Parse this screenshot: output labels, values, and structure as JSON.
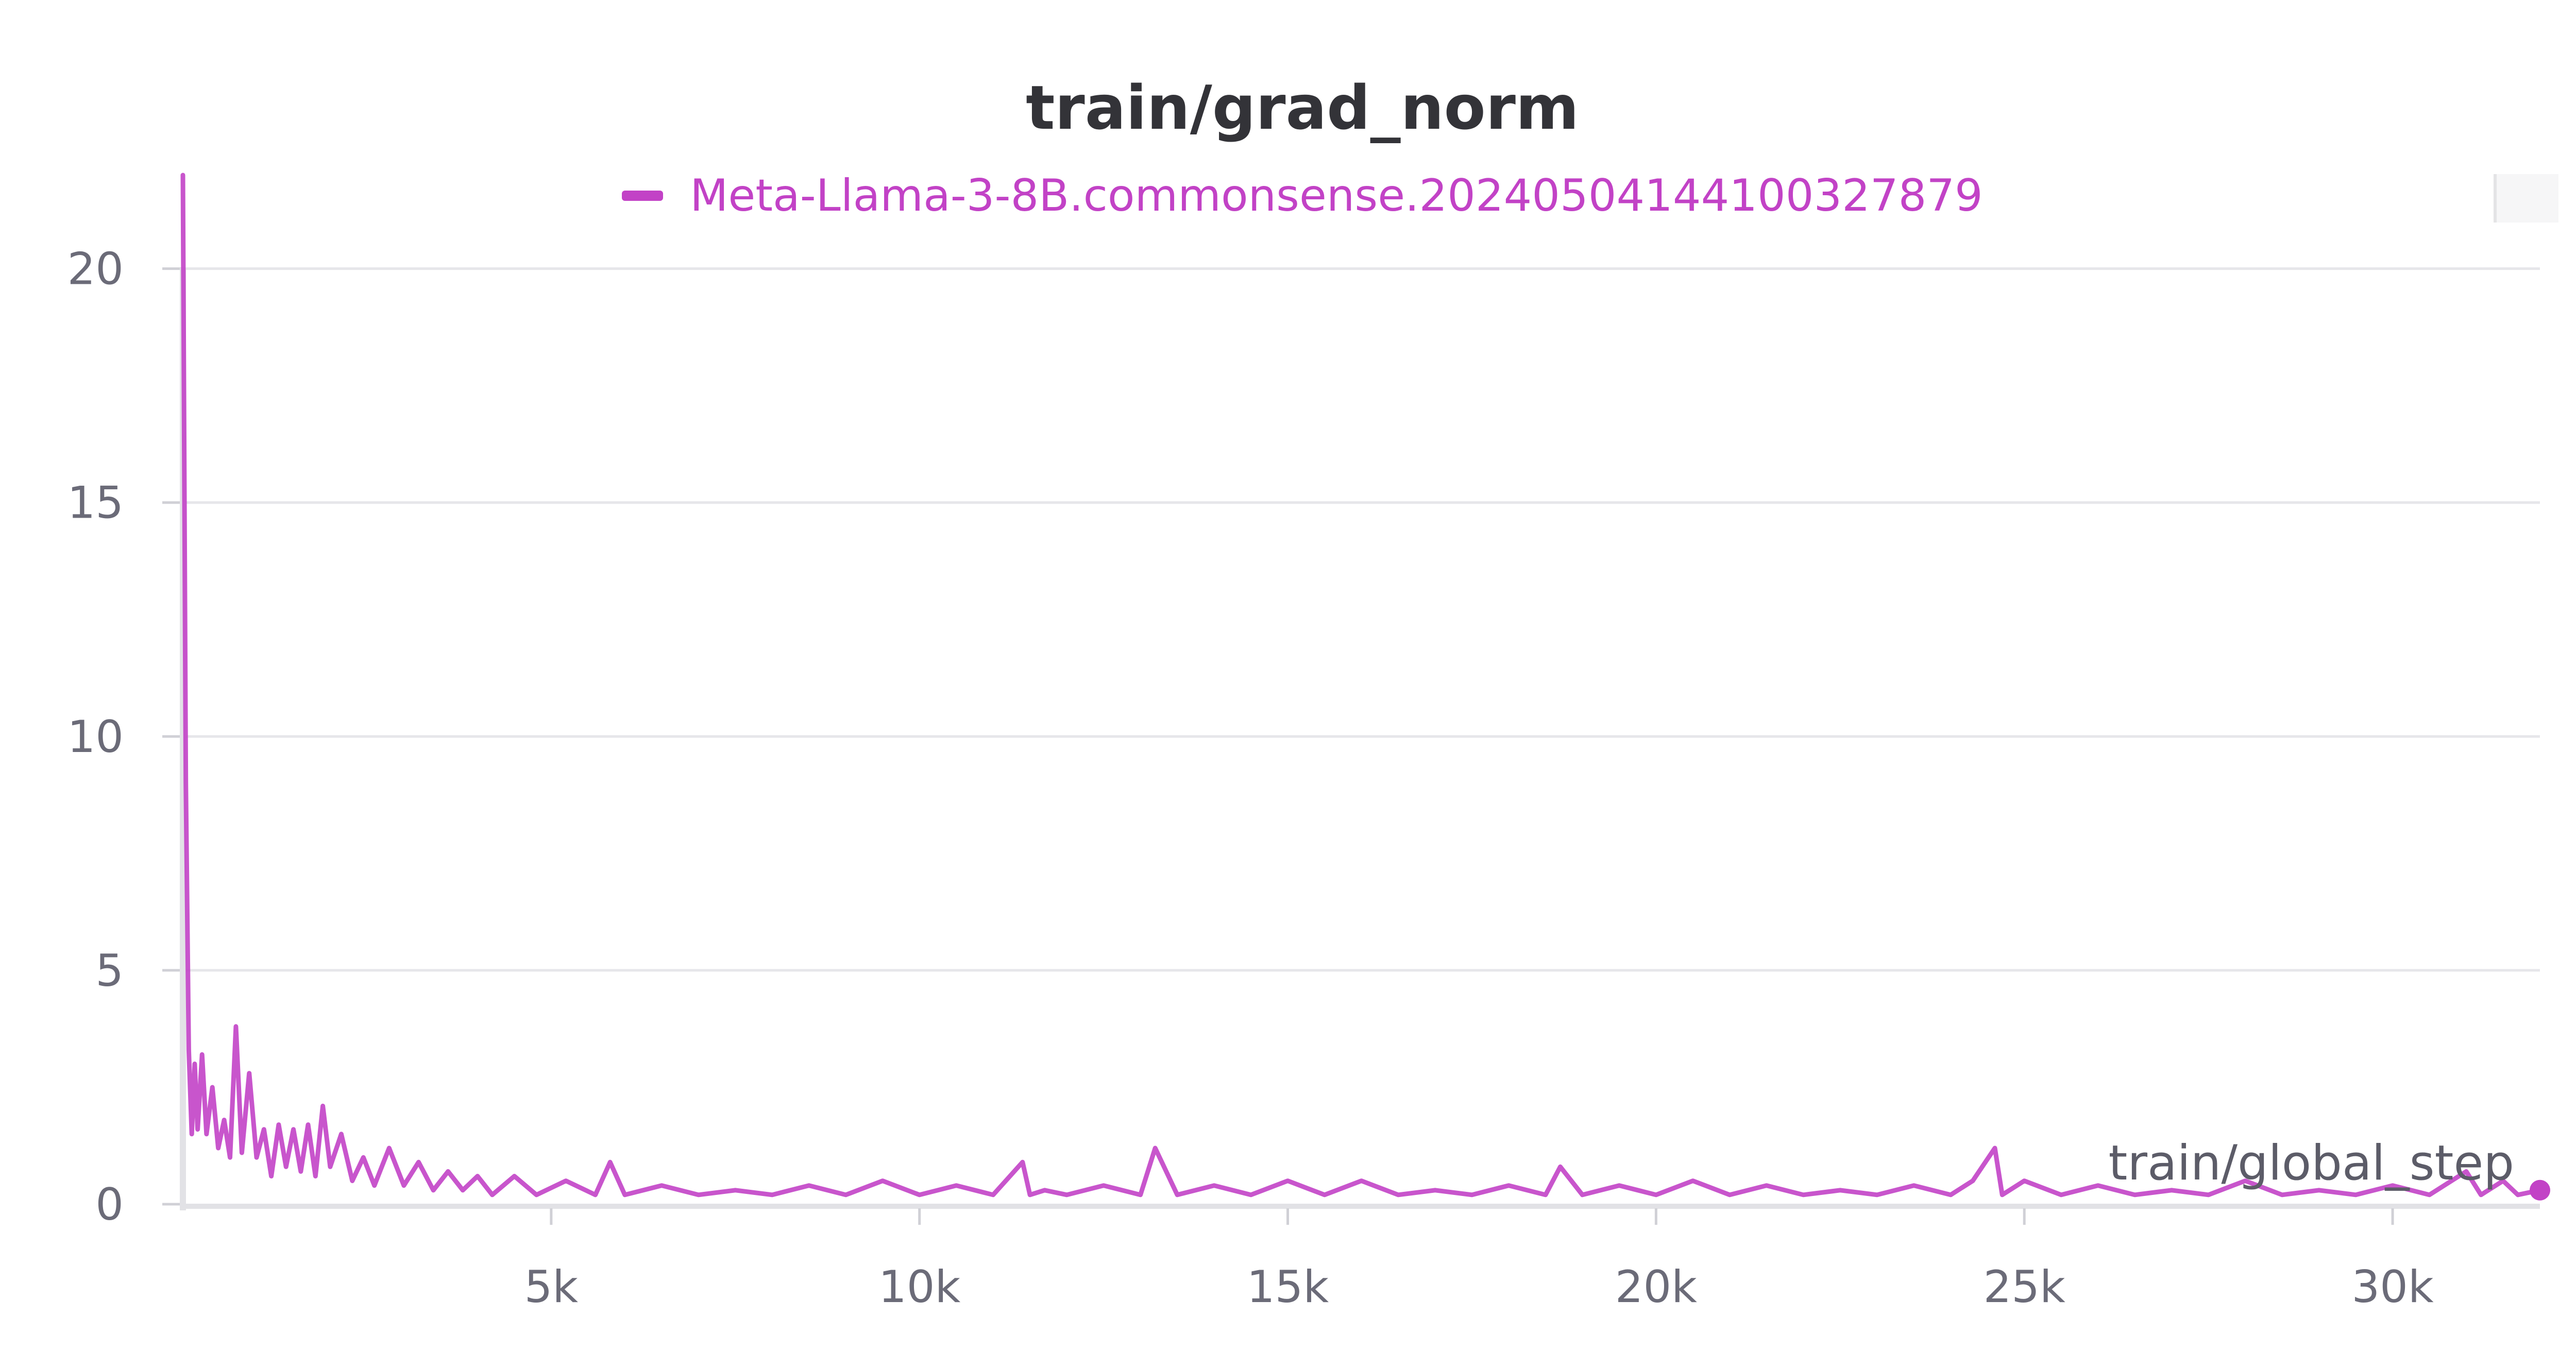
{
  "chart_data": {
    "type": "line",
    "title": "train/grad_norm",
    "xlabel": "train/global_step",
    "ylabel": "",
    "legend_position": "top-center",
    "grid": true,
    "xlim": [
      0,
      32000
    ],
    "ylim": [
      0,
      22
    ],
    "x_ticks": [
      5000,
      10000,
      15000,
      20000,
      25000,
      30000
    ],
    "x_tick_labels": [
      "5k",
      "10k",
      "15k",
      "20k",
      "25k",
      "30k"
    ],
    "y_ticks": [
      0,
      5,
      10,
      15,
      20
    ],
    "y_tick_labels": [
      "0",
      "5",
      "10",
      "15",
      "20"
    ],
    "series": [
      {
        "name": "Meta-Llama-3-8B.commonsense.20240504144100327879",
        "color": "#c242c6",
        "x": [
          0,
          40,
          80,
          120,
          160,
          200,
          260,
          320,
          400,
          480,
          560,
          640,
          720,
          800,
          900,
          1000,
          1100,
          1200,
          1300,
          1400,
          1500,
          1600,
          1700,
          1800,
          1900,
          2000,
          2150,
          2300,
          2450,
          2600,
          2800,
          3000,
          3200,
          3400,
          3600,
          3800,
          4000,
          4200,
          4500,
          4800,
          5200,
          5600,
          5800,
          6000,
          6500,
          7000,
          7500,
          8000,
          8500,
          9000,
          9500,
          10000,
          10500,
          11000,
          11400,
          11500,
          11700,
          12000,
          12500,
          13000,
          13200,
          13500,
          14000,
          14500,
          15000,
          15500,
          16000,
          16500,
          17000,
          17500,
          18000,
          18500,
          18700,
          19000,
          19500,
          20000,
          20500,
          21000,
          21500,
          22000,
          22500,
          23000,
          23500,
          24000,
          24300,
          24600,
          24700,
          25000,
          25500,
          26000,
          26500,
          27000,
          27500,
          28000,
          28500,
          29000,
          29500,
          30000,
          30500,
          31000,
          31200,
          31500,
          31700,
          32000
        ],
        "values": [
          22.0,
          9.0,
          3.3,
          1.5,
          3.0,
          1.6,
          3.2,
          1.5,
          2.5,
          1.2,
          1.8,
          1.0,
          3.8,
          1.1,
          2.8,
          1.0,
          1.6,
          0.6,
          1.7,
          0.8,
          1.6,
          0.7,
          1.7,
          0.6,
          2.1,
          0.8,
          1.5,
          0.5,
          1.0,
          0.4,
          1.2,
          0.4,
          0.9,
          0.3,
          0.7,
          0.3,
          0.6,
          0.2,
          0.6,
          0.2,
          0.5,
          0.2,
          0.9,
          0.2,
          0.4,
          0.2,
          0.3,
          0.2,
          0.4,
          0.2,
          0.5,
          0.2,
          0.4,
          0.2,
          0.9,
          0.2,
          0.3,
          0.2,
          0.4,
          0.2,
          1.2,
          0.2,
          0.4,
          0.2,
          0.5,
          0.2,
          0.5,
          0.2,
          0.3,
          0.2,
          0.4,
          0.2,
          0.8,
          0.2,
          0.4,
          0.2,
          0.5,
          0.2,
          0.4,
          0.2,
          0.3,
          0.2,
          0.4,
          0.2,
          0.5,
          1.2,
          0.2,
          0.5,
          0.2,
          0.4,
          0.2,
          0.3,
          0.2,
          0.5,
          0.2,
          0.3,
          0.2,
          0.4,
          0.2,
          0.7,
          0.2,
          0.5,
          0.2,
          0.3
        ]
      }
    ]
  }
}
